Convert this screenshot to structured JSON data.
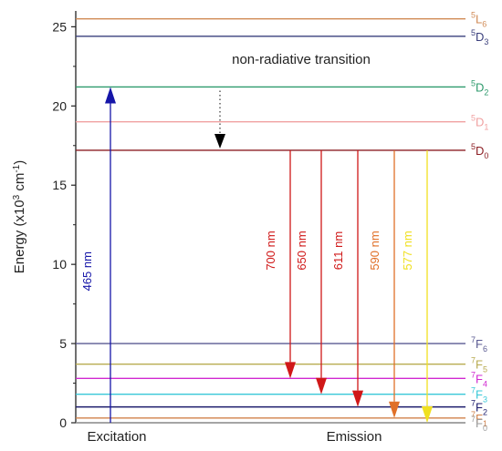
{
  "chart_data": {
    "type": "energy-level-diagram",
    "ylabel": "Energy (x10",
    "ylabel_sup": "3",
    "ylabel_unit": " cm",
    "ylabel_unit_sup": "-1",
    "ylabel_end": ")",
    "ylim": [
      0,
      26
    ],
    "y_ticks": [
      0,
      5,
      10,
      15,
      20,
      25
    ],
    "levels": [
      {
        "term": "5L6",
        "pre": "5",
        "base": "L",
        "sub": "6",
        "energy": 25.5,
        "color": "#d08a55"
      },
      {
        "term": "5D3",
        "pre": "5",
        "base": "D",
        "sub": "3",
        "energy": 24.4,
        "color": "#3a3f7c"
      },
      {
        "term": "5D2",
        "pre": "5",
        "base": "D",
        "sub": "2",
        "energy": 21.2,
        "color": "#2e9a6c"
      },
      {
        "term": "5D1",
        "pre": "5",
        "base": "D",
        "sub": "1",
        "energy": 19.0,
        "color": "#f0a0a0"
      },
      {
        "term": "5D0",
        "pre": "5",
        "base": "D",
        "sub": "0",
        "energy": 17.2,
        "color": "#8c1f24"
      },
      {
        "term": "7F6",
        "pre": "7",
        "base": "F",
        "sub": "6",
        "energy": 5.0,
        "color": "#5a5a92"
      },
      {
        "term": "7F5",
        "pre": "7",
        "base": "F",
        "sub": "5",
        "energy": 3.7,
        "color": "#b8ab50"
      },
      {
        "term": "7F4",
        "pre": "7",
        "base": "F",
        "sub": "4",
        "energy": 2.8,
        "color": "#d028d0"
      },
      {
        "term": "7F3",
        "pre": "7",
        "base": "F",
        "sub": "3",
        "energy": 1.8,
        "color": "#38c8d8"
      },
      {
        "term": "7F2",
        "pre": "7",
        "base": "F",
        "sub": "2",
        "energy": 1.0,
        "color": "#1c1c6c"
      },
      {
        "term": "7F1",
        "pre": "7",
        "base": "F",
        "sub": "1",
        "energy": 0.3,
        "color": "#d08048"
      },
      {
        "term": "7F0",
        "pre": "7",
        "base": "F",
        "sub": "0",
        "energy": 0.0,
        "color": "#9a9a9a"
      }
    ],
    "excitation": {
      "label": "465 nm",
      "from": 0.0,
      "to": 21.2,
      "color": "#1515a8"
    },
    "non_radiative": {
      "label": "non-radiative transition",
      "from": 21.2,
      "to": 17.2
    },
    "emissions": [
      {
        "label": "700 nm",
        "from": 17.2,
        "to": 2.8,
        "color": "#d01818"
      },
      {
        "label": "650 nm",
        "from": 17.2,
        "to": 1.8,
        "color": "#d01818"
      },
      {
        "label": "611 nm",
        "from": 17.2,
        "to": 1.0,
        "color": "#d01818"
      },
      {
        "label": "590 nm",
        "from": 17.2,
        "to": 0.3,
        "color": "#e07028"
      },
      {
        "label": "577 nm",
        "from": 17.2,
        "to": 0.0,
        "color": "#f0e020"
      }
    ],
    "bottom_labels": {
      "excitation": "Excitation",
      "emission": "Emission"
    }
  }
}
